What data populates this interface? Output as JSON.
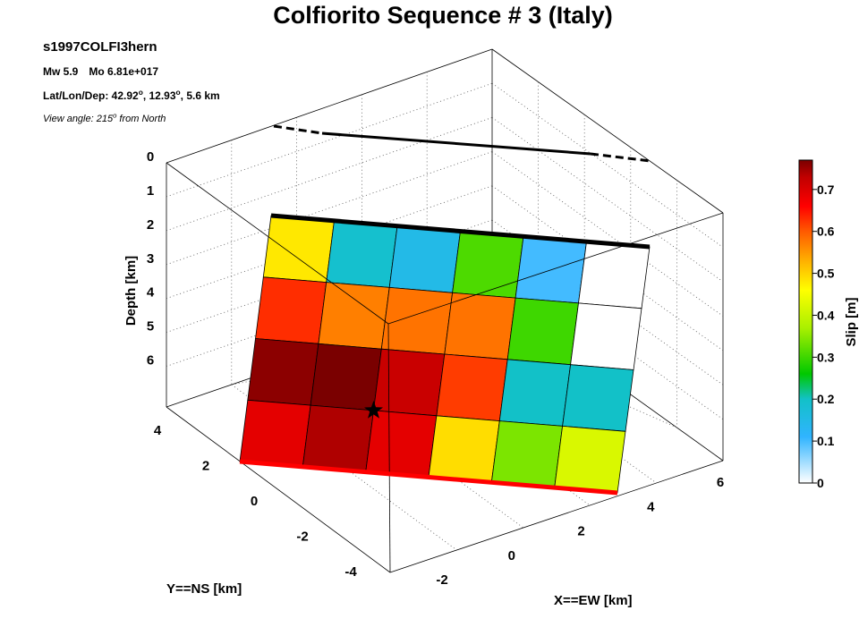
{
  "title": "Colfiorito Sequence # 3 (Italy)",
  "event_id": "s1997COLFI3hern",
  "magnitude": {
    "mw": "Mw 5.9",
    "mo": "Mo 6.81e+017"
  },
  "location": {
    "label": "Lat/Lon/Dep: ",
    "lat": "42.92",
    "lat_sup": "o",
    "sep": ", ",
    "lon": "12.93",
    "lon_sup": "o",
    "depth": ", 5.6 km"
  },
  "view": {
    "prefix": "View angle: 215",
    "sup": "o",
    "suffix": " from North"
  },
  "chart_data": {
    "type": "heatmap",
    "rows": 4,
    "cols": 6,
    "slip_m": [
      [
        0.48,
        0.19,
        0.15,
        0.31,
        0.1,
        0.0
      ],
      [
        0.63,
        0.57,
        0.58,
        0.58,
        0.3,
        0.0
      ],
      [
        0.76,
        0.77,
        0.72,
        0.62,
        0.2,
        0.2
      ],
      [
        0.69,
        0.74,
        0.69,
        0.49,
        0.34,
        0.42
      ]
    ],
    "hypocenter": {
      "row": 3,
      "col": 2
    },
    "zlabel": "Depth [km]",
    "ylabel": "Y==NS [km]",
    "xlabel": "X==EW [km]",
    "depth_ticks": [
      "0",
      "1",
      "2",
      "3",
      "4",
      "5",
      "6"
    ],
    "ns_ticks": [
      "4",
      "2",
      "0",
      "-2",
      "-4"
    ],
    "ew_ticks": [
      "-2",
      "0",
      "2",
      "4",
      "6"
    ],
    "colorbar": {
      "label": "Slip [m]",
      "ticks": [
        "0",
        "0.1",
        "0.2",
        "0.3",
        "0.4",
        "0.5",
        "0.6",
        "0.7"
      ],
      "range": [
        0,
        0.77
      ],
      "colormap": [
        [
          0.0,
          "#ffffff"
        ],
        [
          0.11,
          "#30b4ff"
        ],
        [
          0.2,
          "#12c1c8"
        ],
        [
          0.26,
          "#00c800"
        ],
        [
          0.37,
          "#aaf000"
        ],
        [
          0.46,
          "#ffff00"
        ],
        [
          0.53,
          "#ffb000"
        ],
        [
          0.6,
          "#ff5a00"
        ],
        [
          0.66,
          "#ff0000"
        ],
        [
          0.73,
          "#c00000"
        ],
        [
          0.77,
          "#7a0000"
        ]
      ]
    },
    "grid": true,
    "top_edge_color": "#000000",
    "bottom_edge_color": "#ff0000"
  }
}
